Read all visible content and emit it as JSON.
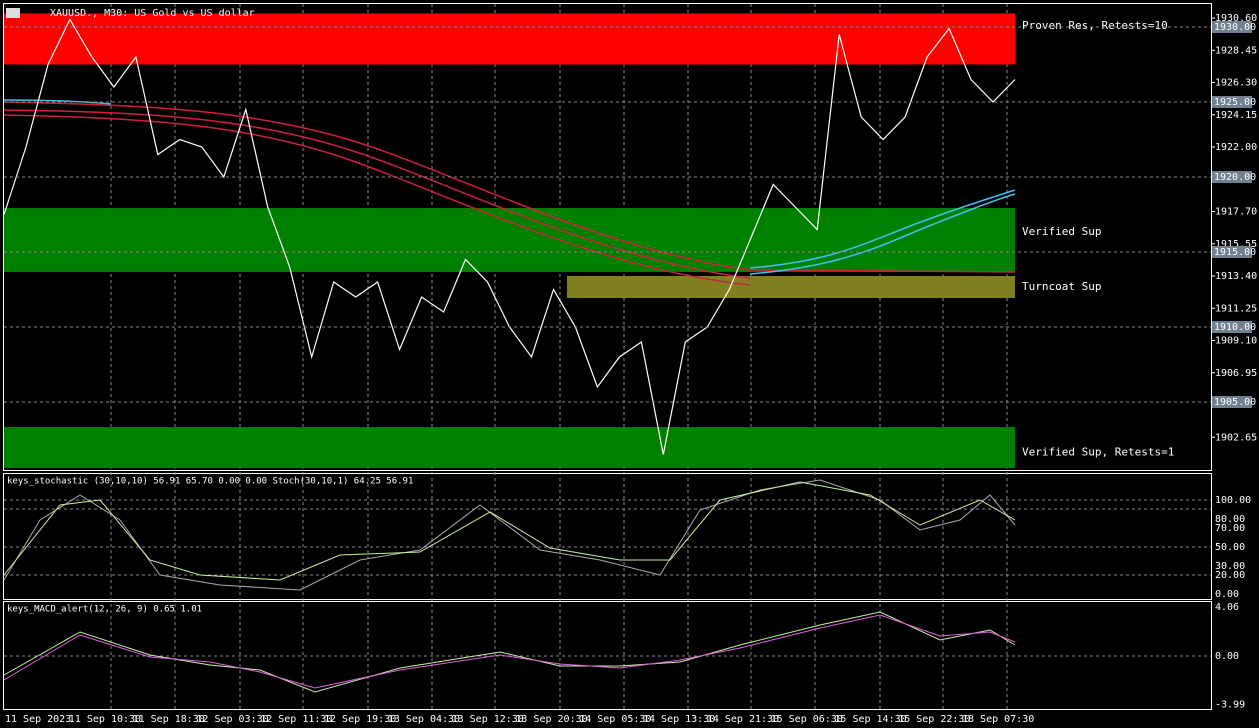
{
  "header": {
    "title": "XAUUSD., M30:  US Gold vs US dollar"
  },
  "price_axis": {
    "labels": [
      "1930.60",
      "1928.45",
      "1926.30",
      "1924.15",
      "1922.00",
      "1917.70",
      "1915.55",
      "1913.40",
      "1911.25",
      "1909.10",
      "1906.95",
      "1902.65"
    ],
    "levels": [
      "1930.00",
      "1925.00",
      "1920.00",
      "1915.00",
      "1910.00",
      "1905.00"
    ]
  },
  "zones": [
    {
      "label": "Proven Res, Retests=10",
      "top": 1930.9,
      "bottom": 1927.5,
      "color": "#ff0000"
    },
    {
      "label": "Verified Sup",
      "top": 1917.93,
      "bottom": 1913.67,
      "color": "#008000"
    },
    {
      "label": "Turncoat Sup",
      "top": 1913.4,
      "bottom": 1911.93,
      "color": "#808020"
    },
    {
      "label": "Verified Sup, Retests=1",
      "top": 1903.33,
      "bottom": 1900.6,
      "color": "#008000"
    }
  ],
  "price": {
    "values": [
      1917.5,
      1922,
      1927.5,
      1930.5,
      1928,
      1926,
      1928,
      1921.5,
      1922.5,
      1922,
      1920,
      1924.5,
      1918,
      1914,
      1908,
      1913,
      1912,
      1913,
      1908.5,
      1912,
      1911,
      1914.5,
      1913,
      1910,
      1908,
      1912.5,
      1910,
      1906,
      1908,
      1909,
      1901.5,
      1909,
      1910,
      1912.5,
      1916,
      1919.5,
      1918,
      1916.5,
      1929.5,
      1924,
      1922.5,
      1924,
      1928,
      1929.9,
      1926.5,
      1925,
      1926.5
    ]
  },
  "stochastic": {
    "title": "keys_stochastic (30,10,10) 56.91 65.70 0.00 0.00 Stoch(30,10,1) 64.25 56.91",
    "labels": [
      "100.00",
      "80.00",
      "70.00",
      "50.00",
      "30.00",
      "20.00",
      "0.00"
    ]
  },
  "macd": {
    "title": "keys_MACD_alert(12, 26, 9) 0.65 1.01",
    "labels": [
      "4.06",
      "0.00",
      "-3.99"
    ]
  },
  "time_axis": [
    "11 Sep 2023",
    "11 Sep 10:30",
    "11 Sep 18:30",
    "12 Sep 03:30",
    "12 Sep 11:30",
    "12 Sep 19:30",
    "13 Sep 04:30",
    "13 Sep 12:30",
    "13 Sep 20:30",
    "14 Sep 05:30",
    "14 Sep 13:30",
    "14 Sep 21:30",
    "15 Sep 06:30",
    "15 Sep 14:30",
    "15 Sep 22:30",
    "18 Sep 07:30"
  ]
}
